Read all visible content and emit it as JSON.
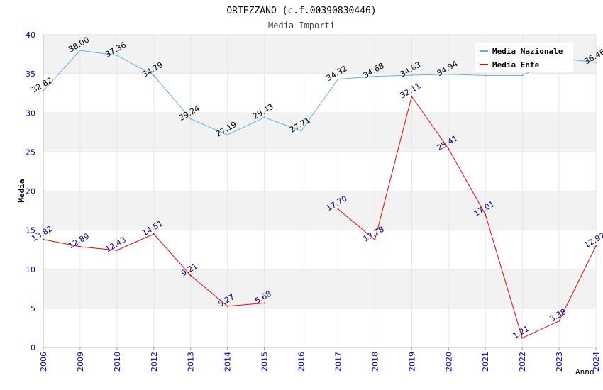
{
  "chart_data": {
    "type": "line",
    "title": "ORTEZZANO (c.f.00390830446)",
    "subtitle": "Media Importi",
    "xlabel": "Anno",
    "ylabel": "Media",
    "categories": [
      "2006",
      "2009",
      "2010",
      "2012",
      "2013",
      "2014",
      "2015",
      "2016",
      "2017",
      "2018",
      "2019",
      "2020",
      "2021",
      "2022",
      "2023",
      "2024"
    ],
    "ylim": [
      0,
      40
    ],
    "yticks": [
      0,
      5,
      10,
      15,
      20,
      25,
      30,
      35,
      40
    ],
    "grid": true,
    "legend_position": "top-right",
    "series": [
      {
        "name": "Media Nazionale",
        "color": "#66aaee",
        "label_color": "#000000",
        "values": [
          32.82,
          38.0,
          37.36,
          34.79,
          29.24,
          27.19,
          29.43,
          27.71,
          34.32,
          34.68,
          34.83,
          34.94,
          34.8,
          34.8,
          37.0,
          36.46
        ],
        "labels": [
          "32.82",
          "38.00",
          "37.36",
          "34.79",
          "29.24",
          "27.19",
          "29.43",
          "27.71",
          "34.32",
          "34.68",
          "34.83",
          "34.94",
          "",
          "",
          "",
          "36.46"
        ]
      },
      {
        "name": "Media Ente",
        "color": "#ee0000",
        "label_color": "#000080",
        "values": [
          13.82,
          12.89,
          12.43,
          14.51,
          9.21,
          5.27,
          5.68,
          null,
          17.7,
          13.78,
          32.11,
          25.41,
          17.01,
          1.21,
          3.38,
          12.97
        ],
        "labels": [
          "13.82",
          "12.89",
          "12.43",
          "14.51",
          "9.21",
          "5.27",
          "5.68",
          "",
          "17.70",
          "13.78",
          "32.11",
          "25.41",
          "17.01",
          "1.21",
          "3.38",
          "12.97"
        ]
      }
    ]
  }
}
